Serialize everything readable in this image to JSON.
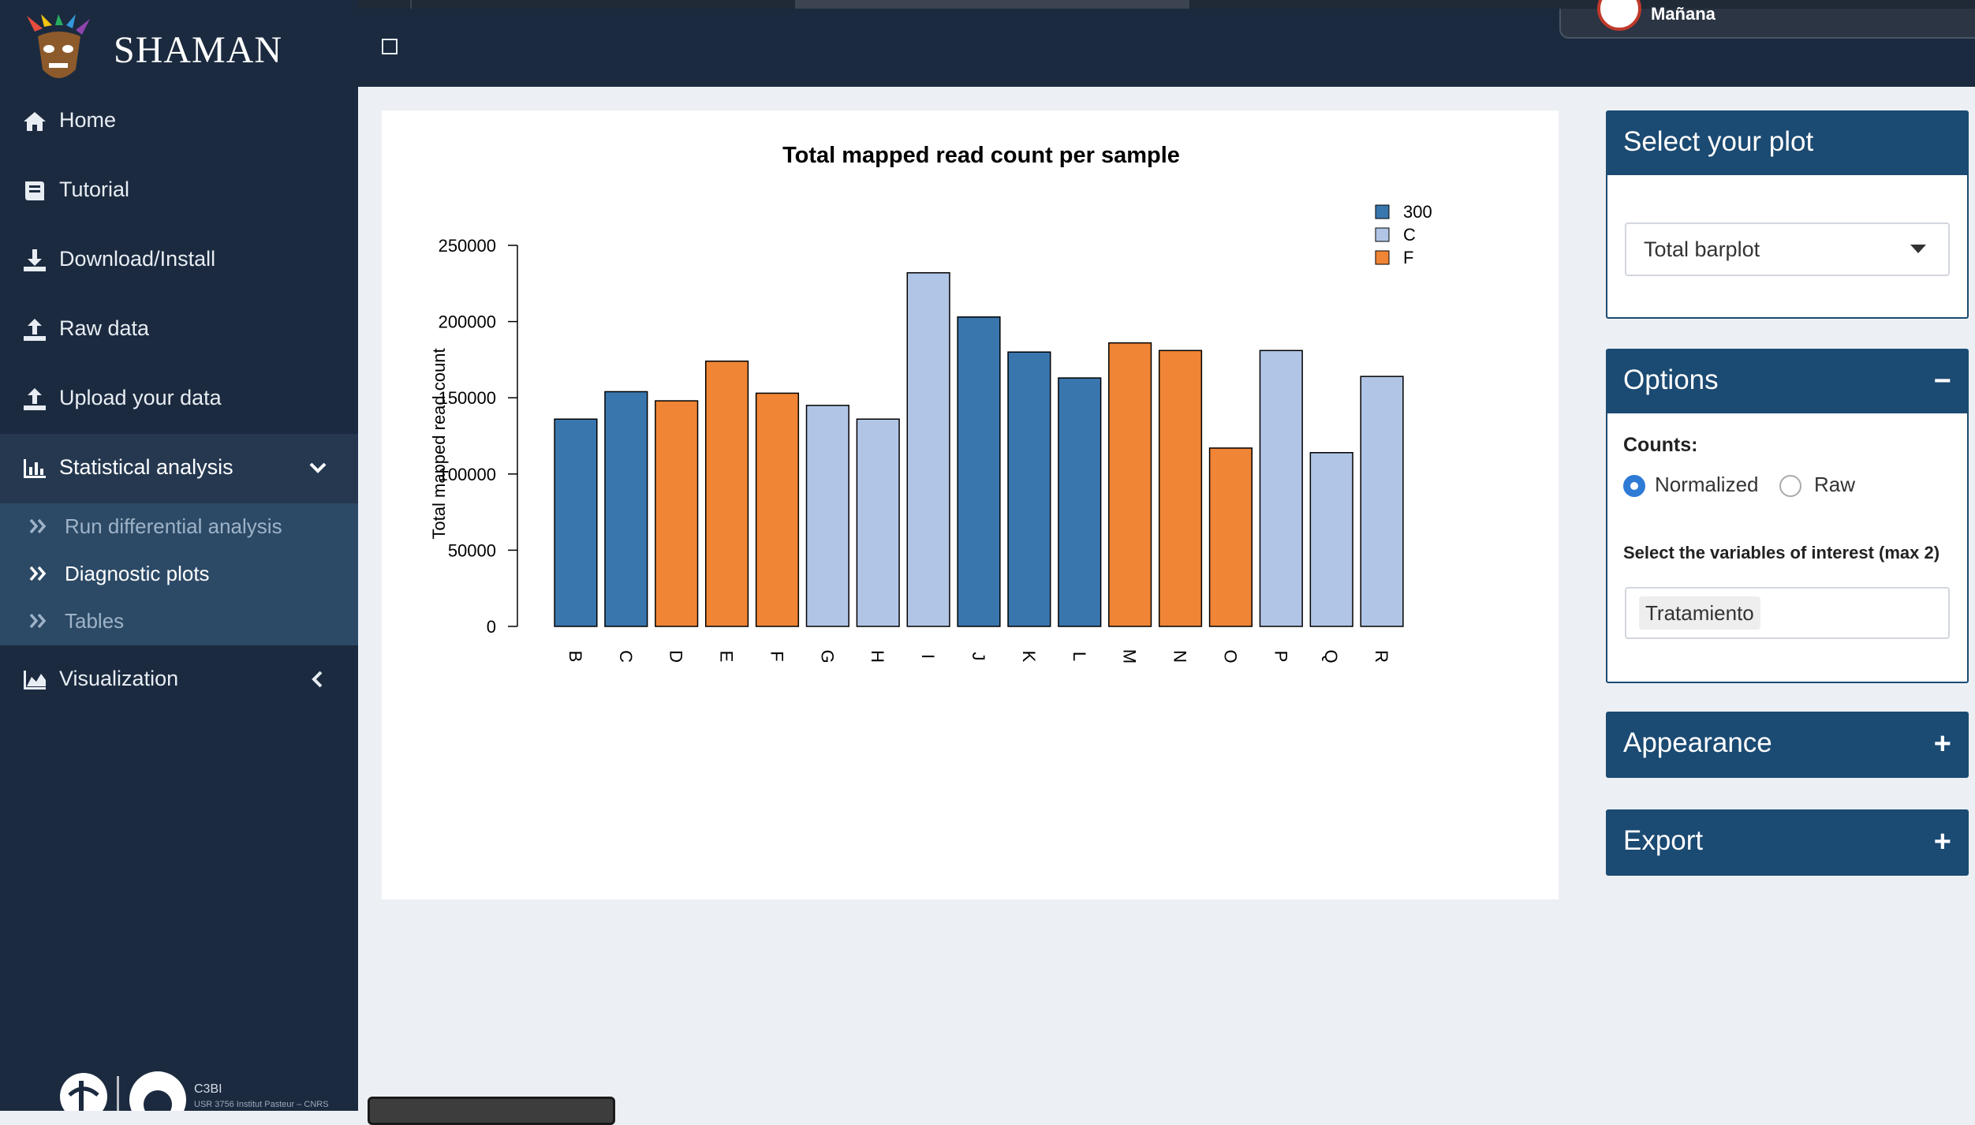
{
  "topbar": {
    "user_name": "Mañana"
  },
  "sidebar": {
    "brand": "SHAMAN",
    "items": [
      {
        "label": "Home",
        "icon": "home-icon"
      },
      {
        "label": "Tutorial",
        "icon": "book-icon"
      },
      {
        "label": "Download/Install",
        "icon": "download-icon"
      },
      {
        "label": "Raw data",
        "icon": "upload-icon"
      },
      {
        "label": "Upload your data",
        "icon": "upload-icon"
      },
      {
        "label": "Statistical analysis",
        "icon": "bar-chart-icon"
      },
      {
        "label": "Visualization",
        "icon": "area-chart-icon"
      }
    ],
    "submenu": [
      {
        "label": "Run differential analysis"
      },
      {
        "label": "Diagnostic plots"
      },
      {
        "label": "Tables"
      }
    ],
    "footer_org": "C3BI",
    "footer_sub": "USR 3756 Institut Pasteur – CNRS"
  },
  "chart_data": {
    "type": "bar",
    "title": "Total mapped read count per sample",
    "xlabel": "",
    "ylabel": "Total mapped read count",
    "ylim": [
      0,
      250000
    ],
    "yticks": [
      0,
      50000,
      100000,
      150000,
      200000,
      250000
    ],
    "ytick_labels": [
      "0",
      "50000",
      "100000",
      "150000",
      "200000",
      "250000"
    ],
    "categories": [
      "B",
      "C",
      "D",
      "E",
      "F",
      "G",
      "H",
      "I",
      "J",
      "K",
      "L",
      "M",
      "N",
      "O",
      "P",
      "Q",
      "R"
    ],
    "values": [
      136000,
      154000,
      148000,
      174000,
      153000,
      145000,
      136000,
      232000,
      203000,
      180000,
      163000,
      186000,
      181000,
      117000,
      181000,
      114000,
      164000
    ],
    "groups": [
      "300",
      "300",
      "F",
      "F",
      "F",
      "C",
      "C",
      "C",
      "300",
      "300",
      "300",
      "F",
      "F",
      "F",
      "C",
      "C",
      "C"
    ],
    "legend": [
      {
        "name": "300",
        "color": "#3a76ae"
      },
      {
        "name": "C",
        "color": "#b1c6e6"
      },
      {
        "name": "F",
        "color": "#ef8535"
      }
    ],
    "legend_position": "top-right",
    "grid": false
  },
  "panels": {
    "select_plot": {
      "title": "Select your plot",
      "value": "Total barplot"
    },
    "options": {
      "title": "Options",
      "toggle": "−",
      "counts_label": "Counts:",
      "radio_normalized": "Normalized",
      "radio_raw": "Raw",
      "variables_label": "Select the variables of interest (max 2)",
      "variable_tag": "Tratamiento"
    },
    "appearance": {
      "title": "Appearance",
      "toggle": "+"
    },
    "export": {
      "title": "Export",
      "toggle": "+"
    }
  }
}
